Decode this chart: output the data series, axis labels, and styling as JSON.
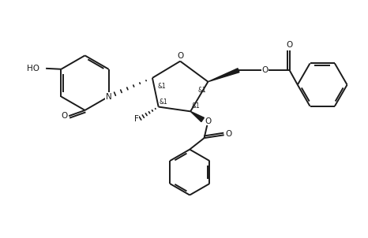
{
  "bg_color": "#ffffff",
  "line_color": "#1a1a1a",
  "bond_lw": 1.4,
  "font_size": 7.5,
  "stereo_font_size": 5.5,
  "xlim": [
    0,
    9.3
  ],
  "ylim": [
    0,
    6.2
  ],
  "figsize": [
    4.66,
    3.02
  ],
  "dpi": 100
}
